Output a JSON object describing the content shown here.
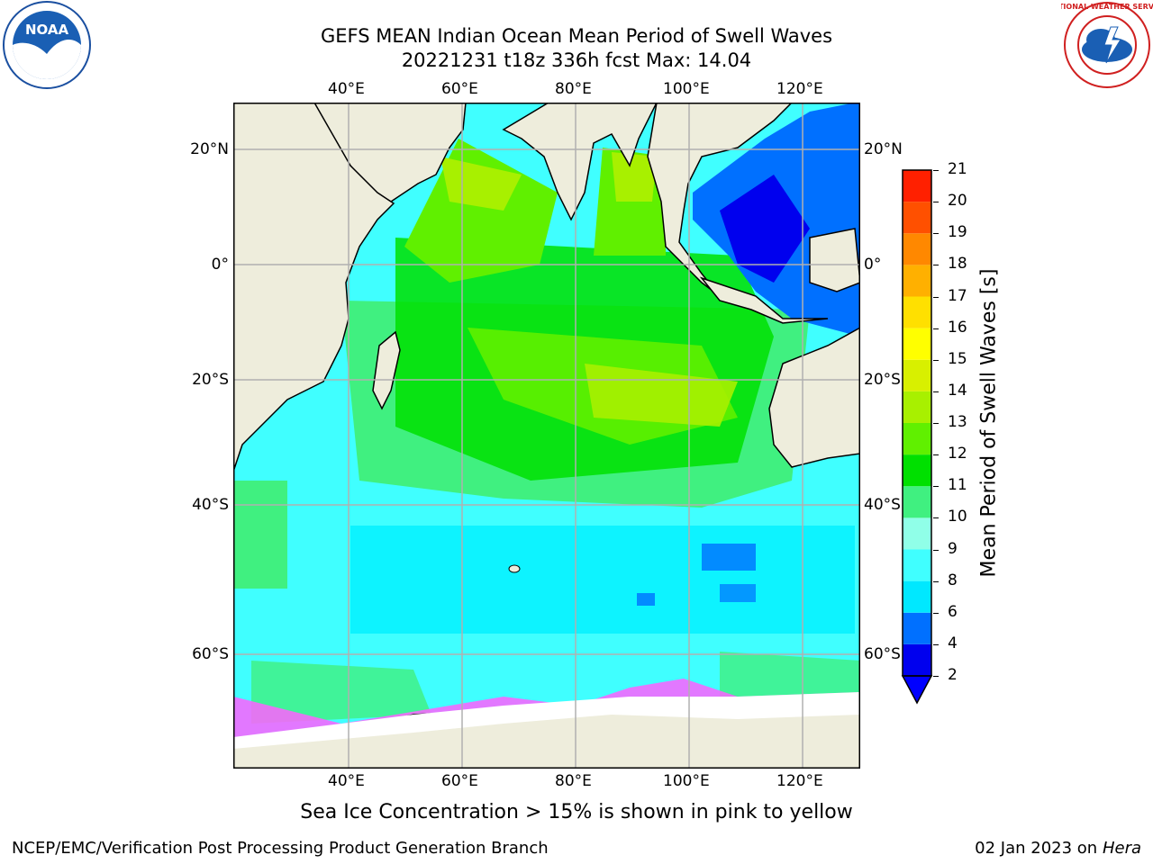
{
  "title_line1": "GEFS MEAN Indian Ocean Mean Period of Swell Waves",
  "title_line2": "20221231 t18z 336h fcst   Max: 14.04",
  "map": {
    "lon_ticks": [
      "40°E",
      "60°E",
      "80°E",
      "100°E",
      "120°E"
    ],
    "lat_ticks": [
      "20°N",
      "0°",
      "20°S",
      "40°S",
      "60°S"
    ]
  },
  "colorbar": {
    "title": "Mean Period of Swell Waves [s]",
    "labels": [
      "2",
      "4",
      "6",
      "8",
      "9",
      "10",
      "11",
      "12",
      "13",
      "14",
      "15",
      "16",
      "17",
      "18",
      "19",
      "20",
      "21"
    ],
    "colors": [
      "#0000ee",
      "#0070ff",
      "#00e8ff",
      "#40ffff",
      "#90ffe8",
      "#40f080",
      "#00e000",
      "#60f000",
      "#a8f000",
      "#d8f000",
      "#ffff00",
      "#ffe000",
      "#ffb000",
      "#ff8800",
      "#ff5000",
      "#ff2000"
    ],
    "under_color": "#0000ff"
  },
  "caption": "Sea Ice Concentration > 15% is shown in pink to yellow",
  "footer_left": "NCEP/EMC/Verification Post Processing Product Generation Branch",
  "footer_right_date": "02 Jan 2023 on",
  "footer_right_host": "Hera",
  "logos": {
    "left": "NOAA",
    "right": "NATIONAL WEATHER SERVICE"
  }
}
